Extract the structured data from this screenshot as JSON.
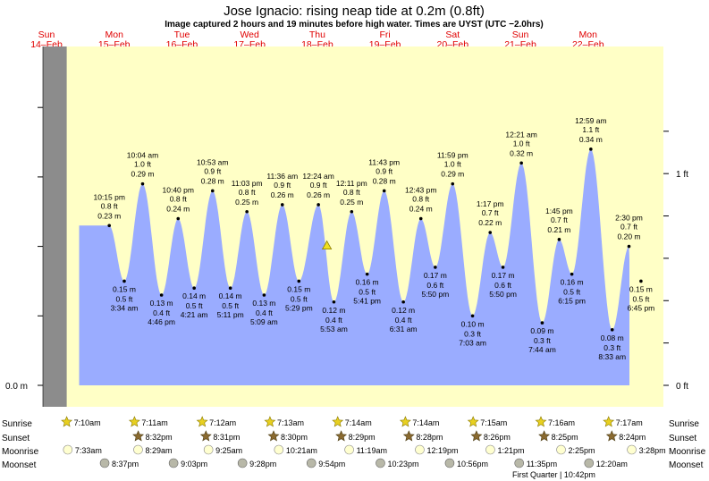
{
  "title": "Jose Ignacio: rising  neap tide at 0.2m (0.8ft)",
  "subtitle": "Image captured 2 hours and 19 minutes before high water. Times are UYST (UTC −2.0hrs)",
  "colors": {
    "day": "#ffffc6",
    "night": "#8c8c8c",
    "water": "#9aacff",
    "outside": "#c8c8c8",
    "day_label": "#e00000",
    "marker": "#f0e020"
  },
  "chart_data": {
    "type": "area",
    "x_unit": "hours since 14-Feb 00:00 (UYST)",
    "y_unit": "m",
    "ylim": [
      0,
      1.4
    ],
    "days": [
      {
        "dow": "Sun",
        "date": "14–Feb"
      },
      {
        "dow": "Mon",
        "date": "15–Feb"
      },
      {
        "dow": "Tue",
        "date": "16–Feb"
      },
      {
        "dow": "Wed",
        "date": "17–Feb"
      },
      {
        "dow": "Thu",
        "date": "18–Feb"
      },
      {
        "dow": "Fri",
        "date": "19–Feb"
      },
      {
        "dow": "Sat",
        "date": "20–Feb"
      },
      {
        "dow": "Sun",
        "date": "21–Feb"
      },
      {
        "dow": "Mon",
        "date": "22–Feb"
      }
    ],
    "left_axis": {
      "label": "0.0 m"
    },
    "right_axis": [
      {
        "value_m": 0,
        "label": "0 ft"
      },
      {
        "value_m": 0.3048,
        "label": "1 ft"
      }
    ],
    "current": {
      "hours": 99.4,
      "height_m": 0.2
    },
    "extremes": [
      {
        "type": "high",
        "hours": 22.25,
        "m": 0.23,
        "time": "10:15 pm",
        "m_label": "0.23 m",
        "ft_label": "0.8 ft"
      },
      {
        "type": "low",
        "hours": 27.57,
        "m": 0.15,
        "time": "3:34 am",
        "m_label": "0.15 m",
        "ft_label": "0.5 ft"
      },
      {
        "type": "high",
        "hours": 34.07,
        "m": 0.29,
        "time": "10:04 am",
        "m_label": "0.29 m",
        "ft_label": "1.0 ft"
      },
      {
        "type": "low",
        "hours": 40.77,
        "m": 0.13,
        "time": "4:46 pm",
        "m_label": "0.13 m",
        "ft_label": "0.4 ft"
      },
      {
        "type": "high",
        "hours": 46.67,
        "m": 0.24,
        "time": "10:40 pm",
        "m_label": "0.24 m",
        "ft_label": "0.8 ft"
      },
      {
        "type": "low",
        "hours": 52.35,
        "m": 0.14,
        "time": "4:21 am",
        "m_label": "0.14 m",
        "ft_label": "0.5 ft"
      },
      {
        "type": "high",
        "hours": 58.88,
        "m": 0.28,
        "time": "10:53 am",
        "m_label": "0.28 m",
        "ft_label": "0.9 ft"
      },
      {
        "type": "low",
        "hours": 65.18,
        "m": 0.14,
        "time": "5:11 pm",
        "m_label": "0.14 m",
        "ft_label": "0.5 ft"
      },
      {
        "type": "high",
        "hours": 71.05,
        "m": 0.25,
        "time": "11:03 pm",
        "m_label": "0.25 m",
        "ft_label": "0.8 ft"
      },
      {
        "type": "low",
        "hours": 77.15,
        "m": 0.13,
        "time": "5:09 am",
        "m_label": "0.13 m",
        "ft_label": "0.4 ft"
      },
      {
        "type": "high",
        "hours": 83.6,
        "m": 0.26,
        "time": "11:36 am",
        "m_label": "0.26 m",
        "ft_label": "0.9 ft"
      },
      {
        "type": "low",
        "hours": 89.48,
        "m": 0.15,
        "time": "5:29 pm",
        "m_label": "0.15 m",
        "ft_label": "0.5 ft"
      },
      {
        "type": "high",
        "hours": 96.4,
        "m": 0.26,
        "time": "12:24 am",
        "m_label": "0.26 m",
        "ft_label": "0.9 ft"
      },
      {
        "type": "low",
        "hours": 101.88,
        "m": 0.12,
        "time": "5:53 am",
        "m_label": "0.12 m",
        "ft_label": "0.4 ft"
      },
      {
        "type": "high",
        "hours": 108.18,
        "m": 0.25,
        "time": "12:11 pm",
        "m_label": "0.25 m",
        "ft_label": "0.8 ft"
      },
      {
        "type": "low",
        "hours": 113.68,
        "m": 0.16,
        "time": "5:41 pm",
        "m_label": "0.16 m",
        "ft_label": "0.5 ft"
      },
      {
        "type": "high",
        "hours": 119.72,
        "m": 0.28,
        "time": "11:43 pm",
        "m_label": "0.28 m",
        "ft_label": "0.9 ft"
      },
      {
        "type": "low",
        "hours": 126.52,
        "m": 0.12,
        "time": "6:31 am",
        "m_label": "0.12 m",
        "ft_label": "0.4 ft"
      },
      {
        "type": "high",
        "hours": 132.72,
        "m": 0.24,
        "time": "12:43 pm",
        "m_label": "0.24 m",
        "ft_label": "0.8 ft"
      },
      {
        "type": "low",
        "hours": 137.83,
        "m": 0.17,
        "time": "5:50 pm",
        "m_label": "0.17 m",
        "ft_label": "0.6 ft"
      },
      {
        "type": "high",
        "hours": 143.98,
        "m": 0.29,
        "time": "11:59 pm",
        "m_label": "0.29 m",
        "ft_label": "1.0 ft"
      },
      {
        "type": "low",
        "hours": 151.05,
        "m": 0.1,
        "time": "7:03 am",
        "m_label": "0.10 m",
        "ft_label": "0.3 ft"
      },
      {
        "type": "high",
        "hours": 157.28,
        "m": 0.22,
        "time": "1:17 pm",
        "m_label": "0.22 m",
        "ft_label": "0.7 ft"
      },
      {
        "type": "low",
        "hours": 161.83,
        "m": 0.17,
        "time": "5:50 pm",
        "m_label": "0.17 m",
        "ft_label": "0.6 ft"
      },
      {
        "type": "high",
        "hours": 168.35,
        "m": 0.32,
        "time": "12:21 am",
        "m_label": "0.32 m",
        "ft_label": "1.0 ft"
      },
      {
        "type": "low",
        "hours": 175.73,
        "m": 0.09,
        "time": "7:44 am",
        "m_label": "0.09 m",
        "ft_label": "0.3 ft"
      },
      {
        "type": "high",
        "hours": 181.75,
        "m": 0.21,
        "time": "1:45 pm",
        "m_label": "0.21 m",
        "ft_label": "0.7 ft"
      },
      {
        "type": "low",
        "hours": 186.25,
        "m": 0.16,
        "time": "6:15 pm",
        "m_label": "0.16 m",
        "ft_label": "0.5 ft"
      },
      {
        "type": "high",
        "hours": 192.98,
        "m": 0.34,
        "time": "12:59 am",
        "m_label": "0.34 m",
        "ft_label": "1.1 ft"
      },
      {
        "type": "low",
        "hours": 200.55,
        "m": 0.08,
        "time": "8:33 am",
        "m_label": "0.08 m",
        "ft_label": "0.3 ft"
      },
      {
        "type": "high",
        "hours": 206.5,
        "m": 0.2,
        "time": "2:30 pm",
        "m_label": "0.20 m",
        "ft_label": "0.7 ft"
      },
      {
        "type": "low",
        "hours": 210.75,
        "m": 0.15,
        "time": "6:45 pm",
        "m_label": "0.15 m",
        "ft_label": "0.5 ft"
      }
    ],
    "sunrise": [
      {
        "hours": 7.17,
        "label": "7:10am"
      },
      {
        "hours": 31.18,
        "label": "7:11am"
      },
      {
        "hours": 55.2,
        "label": "7:12am"
      },
      {
        "hours": 79.22,
        "label": "7:13am"
      },
      {
        "hours": 103.23,
        "label": "7:14am"
      },
      {
        "hours": 127.23,
        "label": "7:14am"
      },
      {
        "hours": 151.25,
        "label": "7:15am"
      },
      {
        "hours": 175.27,
        "label": "7:16am"
      },
      {
        "hours": 199.28,
        "label": "7:17am"
      }
    ],
    "sunset": [
      {
        "hours": 32.53,
        "label": "8:32pm"
      },
      {
        "hours": 56.52,
        "label": "8:31pm"
      },
      {
        "hours": 80.5,
        "label": "8:30pm"
      },
      {
        "hours": 104.48,
        "label": "8:29pm"
      },
      {
        "hours": 128.47,
        "label": "8:28pm"
      },
      {
        "hours": 152.43,
        "label": "8:26pm"
      },
      {
        "hours": 176.42,
        "label": "8:25pm"
      },
      {
        "hours": 200.4,
        "label": "8:24pm"
      }
    ],
    "moonrise": [
      {
        "hours": 7.55,
        "label": "7:33am"
      },
      {
        "hours": 32.48,
        "label": "8:29am"
      },
      {
        "hours": 57.42,
        "label": "9:25am"
      },
      {
        "hours": 82.35,
        "label": "10:21am"
      },
      {
        "hours": 107.32,
        "label": "11:19am"
      },
      {
        "hours": 132.32,
        "label": "12:19pm"
      },
      {
        "hours": 157.35,
        "label": "1:21pm"
      },
      {
        "hours": 182.42,
        "label": "2:25pm"
      },
      {
        "hours": 207.47,
        "label": "3:28pm"
      }
    ],
    "moonset": [
      {
        "hours": 20.62,
        "label": "8:37pm"
      },
      {
        "hours": 45.05,
        "label": "9:03pm"
      },
      {
        "hours": 69.47,
        "label": "9:28pm"
      },
      {
        "hours": 93.9,
        "label": "9:54pm"
      },
      {
        "hours": 118.38,
        "label": "10:23pm"
      },
      {
        "hours": 142.93,
        "label": "10:56pm"
      },
      {
        "hours": 167.58,
        "label": "11:35pm"
      },
      {
        "hours": 192.33,
        "label": "12:20am"
      }
    ],
    "moon_phase": {
      "label": "First Quarter | 10:42pm"
    },
    "row_labels": {
      "sunrise": "Sunrise",
      "sunset": "Sunset",
      "moonrise": "Moonrise",
      "moonset": "Moonset"
    }
  }
}
